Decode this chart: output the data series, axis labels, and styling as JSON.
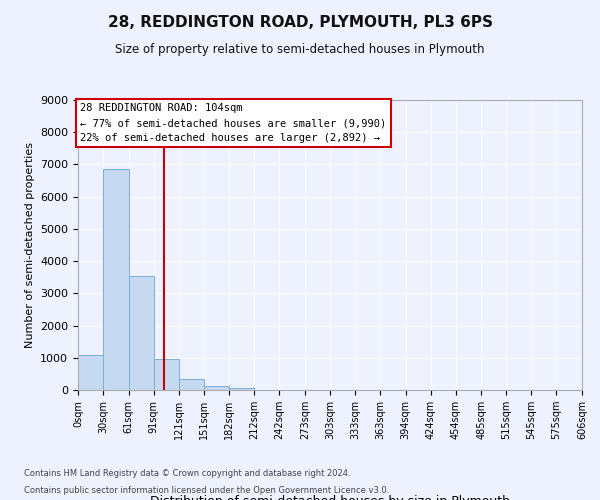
{
  "title": "28, REDDINGTON ROAD, PLYMOUTH, PL3 6PS",
  "subtitle": "Size of property relative to semi-detached houses in Plymouth",
  "xlabel": "Distribution of semi-detached houses by size in Plymouth",
  "ylabel": "Number of semi-detached properties",
  "bar_color": "#c5d9f1",
  "bar_edge_color": "#7bafd4",
  "annotation_title": "28 REDDINGTON ROAD: 104sqm",
  "annotation_line1": "← 77% of semi-detached houses are smaller (9,990)",
  "annotation_line2": "22% of semi-detached houses are larger (2,892) →",
  "property_size": 104,
  "bins": [
    0,
    30,
    61,
    91,
    121,
    151,
    182,
    212,
    242,
    273,
    303,
    333,
    363,
    394,
    424,
    454,
    485,
    515,
    545,
    575,
    606
  ],
  "bin_labels": [
    "0sqm",
    "30sqm",
    "61sqm",
    "91sqm",
    "121sqm",
    "151sqm",
    "182sqm",
    "212sqm",
    "242sqm",
    "273sqm",
    "303sqm",
    "333sqm",
    "363sqm",
    "394sqm",
    "424sqm",
    "454sqm",
    "485sqm",
    "515sqm",
    "545sqm",
    "575sqm",
    "606sqm"
  ],
  "counts": [
    1100,
    6850,
    3550,
    970,
    330,
    110,
    50,
    0,
    0,
    0,
    0,
    0,
    0,
    0,
    0,
    0,
    0,
    0,
    0,
    0
  ],
  "ylim": [
    0,
    9000
  ],
  "yticks": [
    0,
    1000,
    2000,
    3000,
    4000,
    5000,
    6000,
    7000,
    8000,
    9000
  ],
  "footnote1": "Contains HM Land Registry data © Crown copyright and database right 2024.",
  "footnote2": "Contains public sector information licensed under the Open Government Licence v3.0.",
  "background_color": "#eef2ff",
  "grid_color": "#ffffff",
  "annotation_box_color": "#ffffff",
  "annotation_box_edge": "#cc0000",
  "vline_color": "#cc0000"
}
